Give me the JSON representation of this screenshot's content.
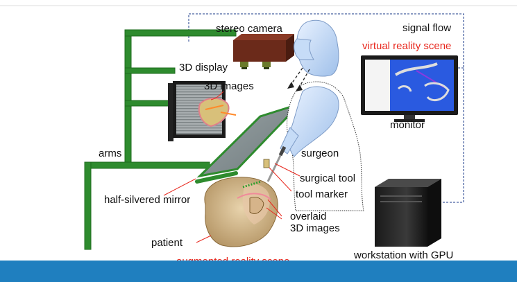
{
  "labels": {
    "stereo_camera": "stereo camera",
    "signal_flow": "signal flow",
    "virtual_reality_scene": "virtual reality scene",
    "display_3d": "3D display",
    "images_3d": "3D images",
    "monitor": "monitor",
    "arms": "arms",
    "surgeon": "surgeon",
    "surgical_tool": "surgical tool",
    "tool_marker": "tool marker",
    "half_silvered_mirror": "half-silvered mirror",
    "overlaid_line1": "overlaid",
    "overlaid_line2": "3D images",
    "patient": "patient",
    "augmented_reality_scene": "augmented reality scene",
    "workstation": "workstation with GPU"
  },
  "colors": {
    "arm_green": "#2e8b2e",
    "arm_dark": "#1e6b1e",
    "camera": "#6b2a1a",
    "accent_red": "#e8281e",
    "surgeon_blue": "#b8d4f4",
    "bar_blue": "#1f7fbf",
    "signal_line": "#1a3a8a"
  }
}
